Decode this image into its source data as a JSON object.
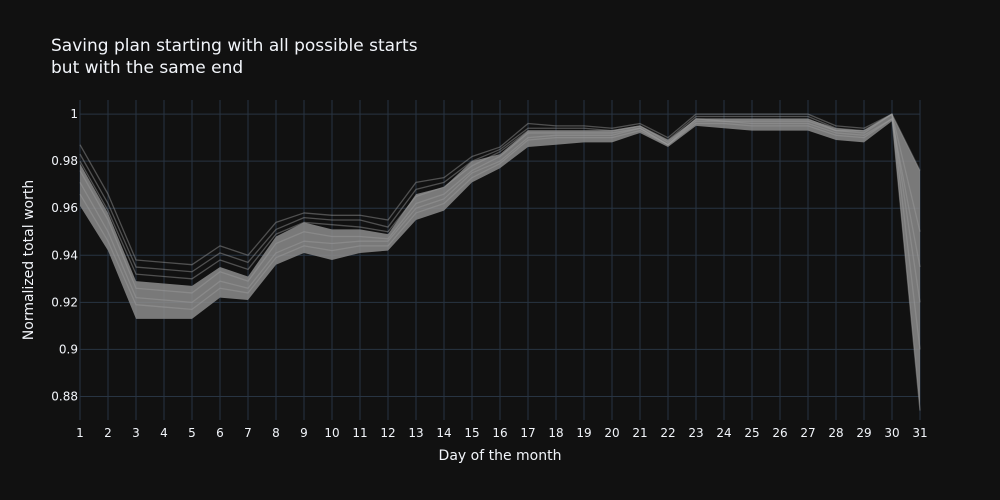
{
  "chart_data": {
    "type": "line",
    "title_lines": [
      "Saving plan starting with all possible starts",
      "but with the same end"
    ],
    "xlabel": "Day of the month",
    "ylabel": "Normalized total worth",
    "x": [
      1,
      2,
      3,
      4,
      5,
      6,
      7,
      8,
      9,
      10,
      11,
      12,
      13,
      14,
      15,
      16,
      17,
      18,
      19,
      20,
      21,
      22,
      23,
      24,
      25,
      26,
      27,
      28,
      29,
      30,
      31
    ],
    "xlim": [
      1,
      31
    ],
    "ylim": [
      0.87,
      1.006
    ],
    "yticks": [
      0.88,
      0.9,
      0.92,
      0.94,
      0.96,
      0.98,
      1
    ],
    "ytick_labels": [
      "0.88",
      "0.9",
      "0.92",
      "0.94",
      "0.96",
      "0.98",
      "1"
    ],
    "grid": true,
    "band": {
      "lower": [
        0.961,
        0.942,
        0.913,
        0.913,
        0.913,
        0.922,
        0.921,
        0.936,
        0.941,
        0.938,
        0.941,
        0.942,
        0.955,
        0.959,
        0.971,
        0.977,
        0.986,
        0.987,
        0.988,
        0.988,
        0.992,
        0.986,
        0.995,
        0.994,
        0.993,
        0.993,
        0.993,
        0.989,
        0.988,
        0.997,
        0.874
      ],
      "upper": [
        0.979,
        0.958,
        0.929,
        0.928,
        0.927,
        0.935,
        0.931,
        0.948,
        0.954,
        0.951,
        0.951,
        0.949,
        0.966,
        0.969,
        0.98,
        0.983,
        0.993,
        0.993,
        0.993,
        0.993,
        0.995,
        0.989,
        0.998,
        0.998,
        0.998,
        0.998,
        0.998,
        0.994,
        0.993,
        1.0,
        0.976
      ]
    },
    "series": [
      {
        "values": [
          0.987,
          0.966,
          0.938,
          0.937,
          0.936,
          0.944,
          0.94,
          0.954,
          0.958,
          0.957,
          0.957,
          0.955,
          0.971,
          0.973,
          0.982,
          0.986,
          0.996,
          0.995,
          0.995,
          0.994,
          0.996,
          0.99,
          1.0,
          1.0,
          1.0,
          1.0,
          1.0,
          0.995,
          0.994,
          1.0,
          0.976
        ]
      },
      {
        "values": [
          0.983,
          0.962,
          0.935,
          0.934,
          0.933,
          0.941,
          0.937,
          0.951,
          0.956,
          0.955,
          0.955,
          0.952,
          0.968,
          0.971,
          0.98,
          0.985,
          0.994,
          0.994,
          0.994,
          0.993,
          0.995,
          0.989,
          0.999,
          0.999,
          0.999,
          0.999,
          0.999,
          0.994,
          0.993,
          1.0,
          0.95
        ]
      },
      {
        "values": [
          0.98,
          0.959,
          0.932,
          0.931,
          0.93,
          0.938,
          0.934,
          0.949,
          0.954,
          0.953,
          0.952,
          0.95,
          0.965,
          0.969,
          0.978,
          0.984,
          0.993,
          0.993,
          0.993,
          0.993,
          0.995,
          0.988,
          0.998,
          0.998,
          0.998,
          0.998,
          0.998,
          0.993,
          0.993,
          1.0,
          0.92
        ]
      },
      {
        "values": [
          0.976,
          0.955,
          0.926,
          0.925,
          0.924,
          0.933,
          0.929,
          0.945,
          0.95,
          0.948,
          0.948,
          0.947,
          0.962,
          0.966,
          0.976,
          0.982,
          0.992,
          0.992,
          0.992,
          0.992,
          0.994,
          0.987,
          0.998,
          0.997,
          0.997,
          0.997,
          0.997,
          0.993,
          0.992,
          1.0,
          0.9
        ]
      },
      {
        "values": [
          0.971,
          0.95,
          0.922,
          0.921,
          0.92,
          0.929,
          0.926,
          0.941,
          0.946,
          0.945,
          0.946,
          0.946,
          0.96,
          0.964,
          0.975,
          0.98,
          0.99,
          0.991,
          0.991,
          0.991,
          0.994,
          0.987,
          0.997,
          0.997,
          0.996,
          0.996,
          0.996,
          0.992,
          0.991,
          0.998,
          0.874
        ]
      },
      {
        "values": [
          0.966,
          0.946,
          0.919,
          0.918,
          0.917,
          0.926,
          0.924,
          0.939,
          0.944,
          0.942,
          0.944,
          0.944,
          0.958,
          0.962,
          0.973,
          0.979,
          0.989,
          0.99,
          0.99,
          0.99,
          0.993,
          0.987,
          0.996,
          0.996,
          0.995,
          0.995,
          0.995,
          0.991,
          0.99,
          0.998,
          0.935
        ]
      }
    ],
    "colors": {
      "background": "#111111",
      "grid": "#283442",
      "text": "#f2f5fa",
      "band": "#8c8c8c",
      "line": "#9e9e9e"
    }
  }
}
